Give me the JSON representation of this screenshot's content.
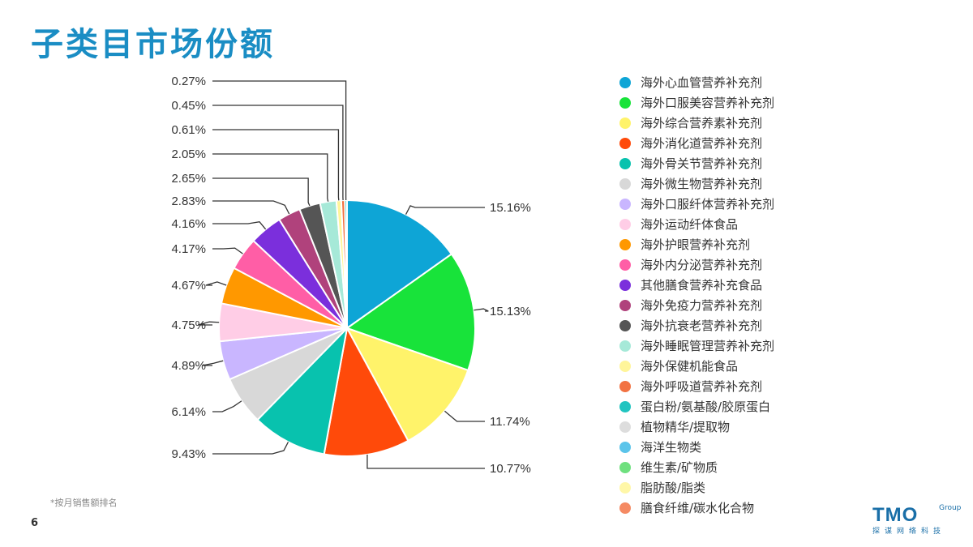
{
  "page": {
    "title": "子类目市场份额",
    "footnote": "*按月销售额排名",
    "page_number": "6",
    "logo": {
      "main": "TMO",
      "group": "Group",
      "sub": "探谋网络科技"
    }
  },
  "chart_data": {
    "type": "pie",
    "title": "",
    "legend_placement": "right",
    "slices": [
      {
        "name": "海外心血管营养补充剂",
        "value": 15.16,
        "label": "15.16%",
        "color": "#0ea5d6"
      },
      {
        "name": "海外口服美容营养补充剂",
        "value": 15.13,
        "label": "15.13%",
        "color": "#18e33a"
      },
      {
        "name": "海外综合营养素补充剂",
        "value": 11.74,
        "label": "11.74%",
        "color": "#fff36a"
      },
      {
        "name": "海外消化道营养补充剂",
        "value": 10.77,
        "label": "10.77%",
        "color": "#ff4a0a"
      },
      {
        "name": "海外骨关节营养补充剂",
        "value": 9.43,
        "label": "9.43%",
        "color": "#08c2ae"
      },
      {
        "name": "海外微生物营养补充剂",
        "value": 6.14,
        "label": "6.14%",
        "color": "#d8d8d8"
      },
      {
        "name": "海外口服纤体营养补充剂",
        "value": 4.89,
        "label": "4.89%",
        "color": "#c9b6ff"
      },
      {
        "name": "海外运动纤体食品",
        "value": 4.75,
        "label": "4.75%",
        "color": "#ffcde6"
      },
      {
        "name": "海外护眼营养补充剂",
        "value": 4.67,
        "label": "4.67%",
        "color": "#ff9800"
      },
      {
        "name": "海外内分泌营养补充剂",
        "value": 4.17,
        "label": "4.17%",
        "color": "#ff5ea6"
      },
      {
        "name": "其他膳食营养补充食品",
        "value": 4.16,
        "label": "4.16%",
        "color": "#7b2fdc"
      },
      {
        "name": "海外免疫力营养补充剂",
        "value": 2.83,
        "label": "2.83%",
        "color": "#b0427c"
      },
      {
        "name": "海外抗衰老营养补充剂",
        "value": 2.65,
        "label": "2.65%",
        "color": "#555555"
      },
      {
        "name": "海外睡眠管理营养补充剂",
        "value": 2.05,
        "label": "2.05%",
        "color": "#a6e9d8"
      },
      {
        "name": "海外保健机能食品",
        "value": 0.61,
        "label": "0.61%",
        "color": "#fff59a"
      },
      {
        "name": "海外呼吸道营养补充剂",
        "value": 0.45,
        "label": "0.45%",
        "color": "#f27242"
      },
      {
        "name": "蛋白粉/氨基酸/胶原蛋白",
        "value": 0.27,
        "label": "0.27%",
        "color": "#21c4c0"
      }
    ],
    "legend_entries": [
      {
        "name": "海外心血管营养补充剂",
        "color": "#0ea5d6"
      },
      {
        "name": "海外口服美容营养补充剂",
        "color": "#18e33a"
      },
      {
        "name": "海外综合营养素补充剂",
        "color": "#fff36a"
      },
      {
        "name": "海外消化道营养补充剂",
        "color": "#ff4a0a"
      },
      {
        "name": "海外骨关节营养补充剂",
        "color": "#08c2ae"
      },
      {
        "name": "海外微生物营养补充剂",
        "color": "#d8d8d8"
      },
      {
        "name": "海外口服纤体营养补充剂",
        "color": "#c9b6ff"
      },
      {
        "name": "海外运动纤体食品",
        "color": "#ffcde6"
      },
      {
        "name": "海外护眼营养补充剂",
        "color": "#ff9800"
      },
      {
        "name": "海外内分泌营养补充剂",
        "color": "#ff5ea6"
      },
      {
        "name": "其他膳食营养补充食品",
        "color": "#7b2fdc"
      },
      {
        "name": "海外免疫力营养补充剂",
        "color": "#b0427c"
      },
      {
        "name": "海外抗衰老营养补充剂",
        "color": "#555555"
      },
      {
        "name": "海外睡眠管理营养补充剂",
        "color": "#a6e9d8"
      },
      {
        "name": "海外保健机能食品",
        "color": "#fff59a"
      },
      {
        "name": "海外呼吸道营养补充剂",
        "color": "#f27242"
      },
      {
        "name": "蛋白粉/氨基酸/胶原蛋白",
        "color": "#21c4c0"
      },
      {
        "name": "植物精华/提取物",
        "color": "#dddddd"
      },
      {
        "name": "海洋生物类",
        "color": "#5bc4ea"
      },
      {
        "name": "维生素/矿物质",
        "color": "#6fe07f"
      },
      {
        "name": "脂肪酸/脂类",
        "color": "#fff7a8"
      },
      {
        "name": "膳食纤维/碳水化合物",
        "color": "#f58a63"
      }
    ]
  }
}
